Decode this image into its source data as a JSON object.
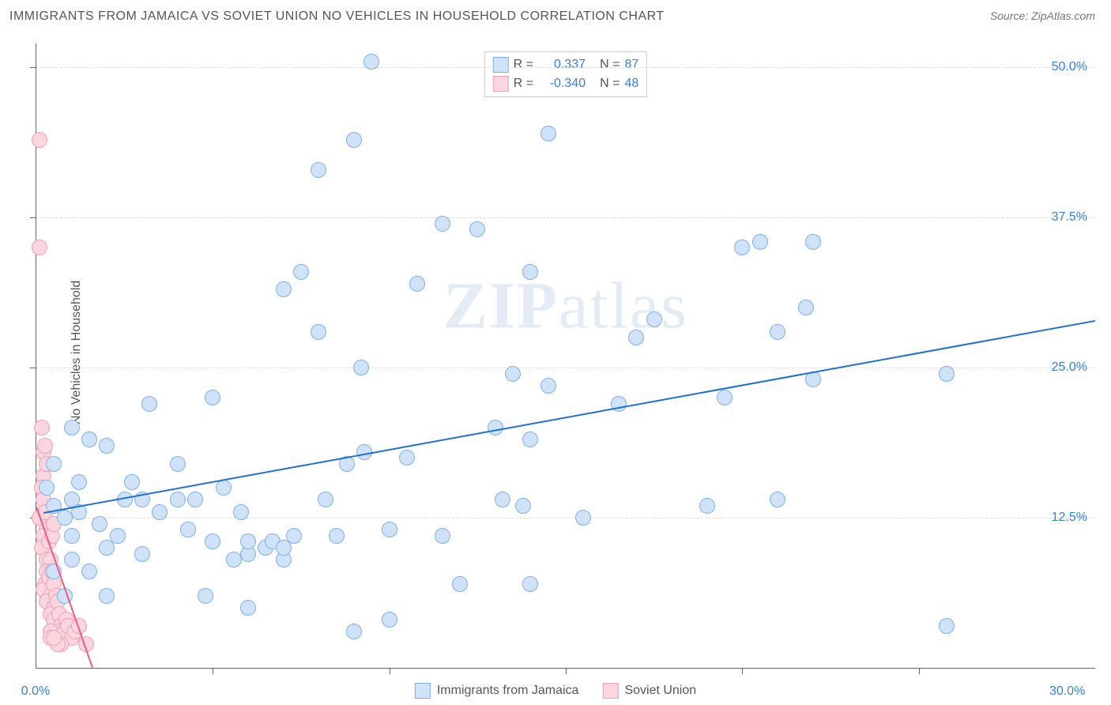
{
  "title": "IMMIGRANTS FROM JAMAICA VS SOVIET UNION NO VEHICLES IN HOUSEHOLD CORRELATION CHART",
  "source": "Source: ZipAtlas.com",
  "ylabel": "No Vehicles in Household",
  "watermark_bold": "ZIP",
  "watermark_rest": "atlas",
  "chart": {
    "type": "scatter",
    "xlim": [
      0,
      30
    ],
    "ylim": [
      0,
      52
    ],
    "xtick_labels": [
      "0.0%",
      "30.0%"
    ],
    "xtick_positions": [
      0,
      30
    ],
    "xtick_minor": [
      5,
      10,
      15,
      20,
      25
    ],
    "ytick_labels": [
      "12.5%",
      "25.0%",
      "37.5%",
      "50.0%"
    ],
    "ytick_positions": [
      12.5,
      25,
      37.5,
      50
    ],
    "grid_color": "#dddddd",
    "background_color": "#ffffff",
    "axis_color": "#666666",
    "tick_label_color": "#3b7dd8",
    "label_fontsize": 16,
    "marker_radius": 9
  },
  "series": {
    "jamaica": {
      "label": "Immigrants from Jamaica",
      "fill_color": "#cfe2f8",
      "stroke_color": "#7eb0e8",
      "line_color": "#1f6fd4",
      "R": "0.337",
      "N": "87",
      "trend": {
        "x1": 0.2,
        "y1": 13.0,
        "x2": 30,
        "y2": 29.0
      },
      "points": [
        [
          0.5,
          13.5
        ],
        [
          0.8,
          12.5
        ],
        [
          0.3,
          15
        ],
        [
          0.5,
          17
        ],
        [
          1.0,
          14
        ],
        [
          1.0,
          11
        ],
        [
          1.5,
          19
        ],
        [
          1.2,
          15.5
        ],
        [
          1.8,
          12
        ],
        [
          2.0,
          18.5
        ],
        [
          2.0,
          10
        ],
        [
          2.5,
          14
        ],
        [
          2.7,
          15.5
        ],
        [
          1.5,
          8
        ],
        [
          2.0,
          6
        ],
        [
          3.2,
          22
        ],
        [
          3.5,
          13
        ],
        [
          3.0,
          9.5
        ],
        [
          4.0,
          14
        ],
        [
          4.5,
          14
        ],
        [
          5.0,
          10.5
        ],
        [
          5.0,
          22.5
        ],
        [
          5.3,
          15
        ],
        [
          4.3,
          11.5
        ],
        [
          5.8,
          13
        ],
        [
          6.0,
          9.5
        ],
        [
          6.0,
          10.5
        ],
        [
          6.5,
          10
        ],
        [
          6.7,
          10.5
        ],
        [
          7.0,
          31.5
        ],
        [
          7.3,
          11
        ],
        [
          7.0,
          9
        ],
        [
          7.0,
          10
        ],
        [
          6.0,
          5
        ],
        [
          8.0,
          28
        ],
        [
          8.0,
          41.5
        ],
        [
          7.5,
          33
        ],
        [
          8.2,
          14
        ],
        [
          8.5,
          11
        ],
        [
          8.8,
          17
        ],
        [
          9.2,
          25
        ],
        [
          9.0,
          44
        ],
        [
          9.5,
          50.5
        ],
        [
          9.3,
          18
        ],
        [
          9.0,
          3
        ],
        [
          10.0,
          4
        ],
        [
          10.0,
          11.5
        ],
        [
          10.8,
          32
        ],
        [
          10.5,
          17.5
        ],
        [
          11.5,
          37
        ],
        [
          11.5,
          11
        ],
        [
          12.0,
          7
        ],
        [
          12.5,
          36.5
        ],
        [
          13.0,
          20
        ],
        [
          13.5,
          24.5
        ],
        [
          13.2,
          14
        ],
        [
          14.0,
          33
        ],
        [
          14.0,
          19
        ],
        [
          13.8,
          13.5
        ],
        [
          14.5,
          23.5
        ],
        [
          14.0,
          7
        ],
        [
          14.5,
          44.5
        ],
        [
          16.5,
          22
        ],
        [
          15.5,
          12.5
        ],
        [
          17.0,
          27.5
        ],
        [
          17.5,
          29
        ],
        [
          19.0,
          13.5
        ],
        [
          19.5,
          22.5
        ],
        [
          20.0,
          35
        ],
        [
          20.5,
          35.5
        ],
        [
          21.0,
          14
        ],
        [
          21.0,
          28
        ],
        [
          21.8,
          30
        ],
        [
          22.0,
          35.5
        ],
        [
          22.0,
          24
        ],
        [
          25.8,
          24.5
        ],
        [
          25.8,
          3.5
        ],
        [
          3.0,
          14
        ],
        [
          1.0,
          20
        ],
        [
          1.0,
          9
        ],
        [
          0.5,
          8
        ],
        [
          0.8,
          6
        ],
        [
          1.2,
          13
        ],
        [
          2.3,
          11
        ],
        [
          5.6,
          9
        ],
        [
          4.8,
          6
        ],
        [
          4.0,
          17
        ]
      ]
    },
    "soviet": {
      "label": "Soviet Union",
      "fill_color": "#fbd6df",
      "stroke_color": "#f49fb4",
      "line_color": "#e85d87",
      "R": "-0.340",
      "N": "48",
      "trend": {
        "x1": 0.0,
        "y1": 13.5,
        "x2": 1.6,
        "y2": 0
      },
      "points": [
        [
          0.1,
          44
        ],
        [
          0.1,
          35
        ],
        [
          0.15,
          20
        ],
        [
          0.2,
          18
        ],
        [
          0.25,
          18.5
        ],
        [
          0.2,
          16
        ],
        [
          0.3,
          17
        ],
        [
          0.15,
          15
        ],
        [
          0.2,
          14
        ],
        [
          0.1,
          12.5
        ],
        [
          0.25,
          13
        ],
        [
          0.3,
          11.5
        ],
        [
          0.2,
          11
        ],
        [
          0.15,
          10
        ],
        [
          0.35,
          10.5
        ],
        [
          0.3,
          9
        ],
        [
          0.4,
          9
        ],
        [
          0.45,
          11
        ],
        [
          0.5,
          12
        ],
        [
          0.3,
          8
        ],
        [
          0.25,
          7
        ],
        [
          0.2,
          6.5
        ],
        [
          0.35,
          7.5
        ],
        [
          0.4,
          6
        ],
        [
          0.45,
          8
        ],
        [
          0.5,
          7
        ],
        [
          0.3,
          5.5
        ],
        [
          0.5,
          5
        ],
        [
          0.55,
          6
        ],
        [
          0.4,
          4.5
        ],
        [
          0.6,
          5.5
        ],
        [
          0.5,
          4
        ],
        [
          0.65,
          4.5
        ],
        [
          0.5,
          3
        ],
        [
          0.7,
          3.5
        ],
        [
          0.6,
          3
        ],
        [
          0.4,
          3
        ],
        [
          0.8,
          3
        ],
        [
          0.85,
          4
        ],
        [
          0.9,
          3.5
        ],
        [
          0.4,
          2.5
        ],
        [
          1.0,
          2.5
        ],
        [
          1.1,
          3
        ],
        [
          1.2,
          3.5
        ],
        [
          0.7,
          2
        ],
        [
          0.6,
          2
        ],
        [
          0.5,
          2.5
        ],
        [
          1.4,
          2
        ]
      ]
    }
  },
  "legend_top": {
    "rows": [
      {
        "swatch_fill": "#cfe2f8",
        "swatch_border": "#7eb0e8",
        "R_label": "R =",
        "R_value": "0.337",
        "N_label": "N =",
        "N_value": "87"
      },
      {
        "swatch_fill": "#fbd6df",
        "swatch_border": "#f49fb4",
        "R_label": "R =",
        "R_value": "-0.340",
        "N_label": "N =",
        "N_value": "48"
      }
    ]
  },
  "legend_bottom": [
    {
      "swatch_fill": "#cfe2f8",
      "swatch_border": "#7eb0e8",
      "label": "Immigrants from Jamaica"
    },
    {
      "swatch_fill": "#fbd6df",
      "swatch_border": "#f49fb4",
      "label": "Soviet Union"
    }
  ]
}
